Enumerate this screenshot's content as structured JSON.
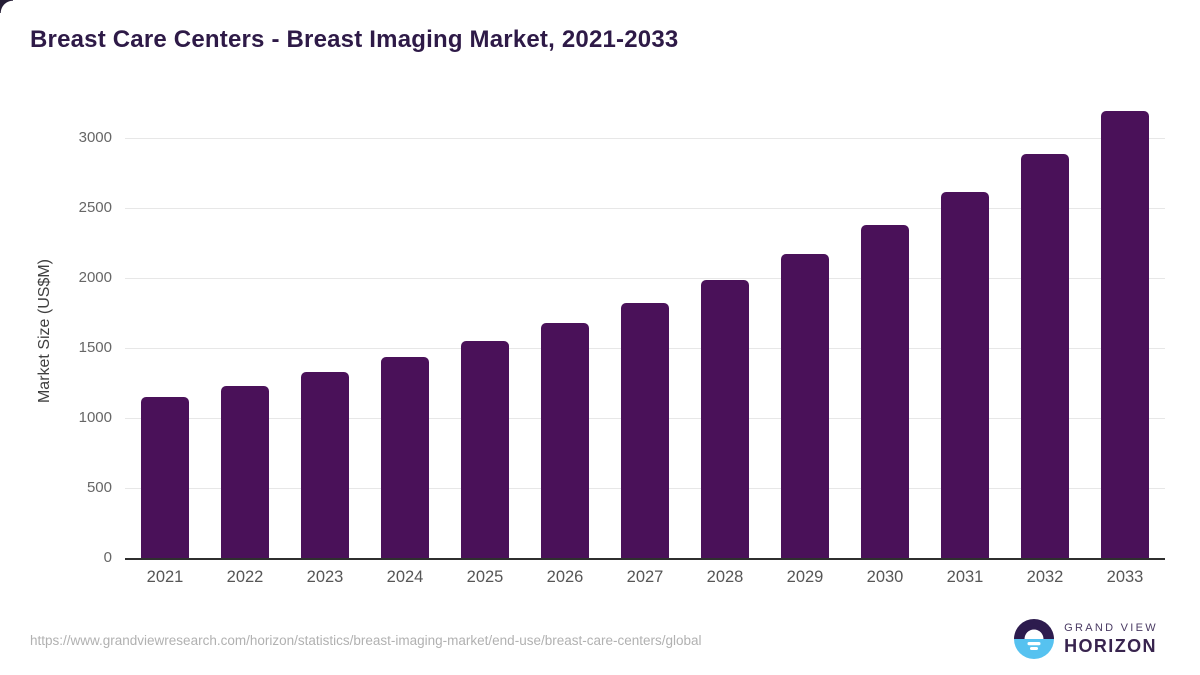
{
  "page": {
    "title": "Breast Care Centers - Breast Imaging Market, 2021-2033"
  },
  "chart_data": {
    "type": "bar",
    "title": "Breast Care Centers - Breast Imaging Market, 2021-2033",
    "categories": [
      "2021",
      "2022",
      "2023",
      "2024",
      "2025",
      "2026",
      "2027",
      "2028",
      "2029",
      "2030",
      "2031",
      "2032",
      "2033"
    ],
    "values": [
      1150,
      1230,
      1330,
      1435,
      1550,
      1680,
      1820,
      1985,
      2170,
      2375,
      2615,
      2885,
      3195
    ],
    "xlabel": "",
    "ylabel": "Market Size (US$M)",
    "ylim": [
      0,
      3235
    ],
    "yticks": [
      0,
      500,
      1000,
      1500,
      2000,
      2500,
      3000
    ],
    "grid": true,
    "legend": false,
    "bar_color": "#4A1159"
  },
  "footer": {
    "source_url": "https://www.grandviewresearch.com/horizon/statistics/breast-imaging-market/end-use/breast-care-centers/global",
    "logo": {
      "name_line1": "GRAND VIEW",
      "name_line2": "HORIZON"
    }
  },
  "colors": {
    "title_text": "#2E1A47",
    "bar": "#4A1159",
    "gridline": "#E7E7E7",
    "axis_line": "#2F2F2F",
    "tick_label": "#666666",
    "url_text": "#B1B1B1",
    "logo_purple": "#2D1B4E",
    "logo_blue": "#56C2F0"
  }
}
